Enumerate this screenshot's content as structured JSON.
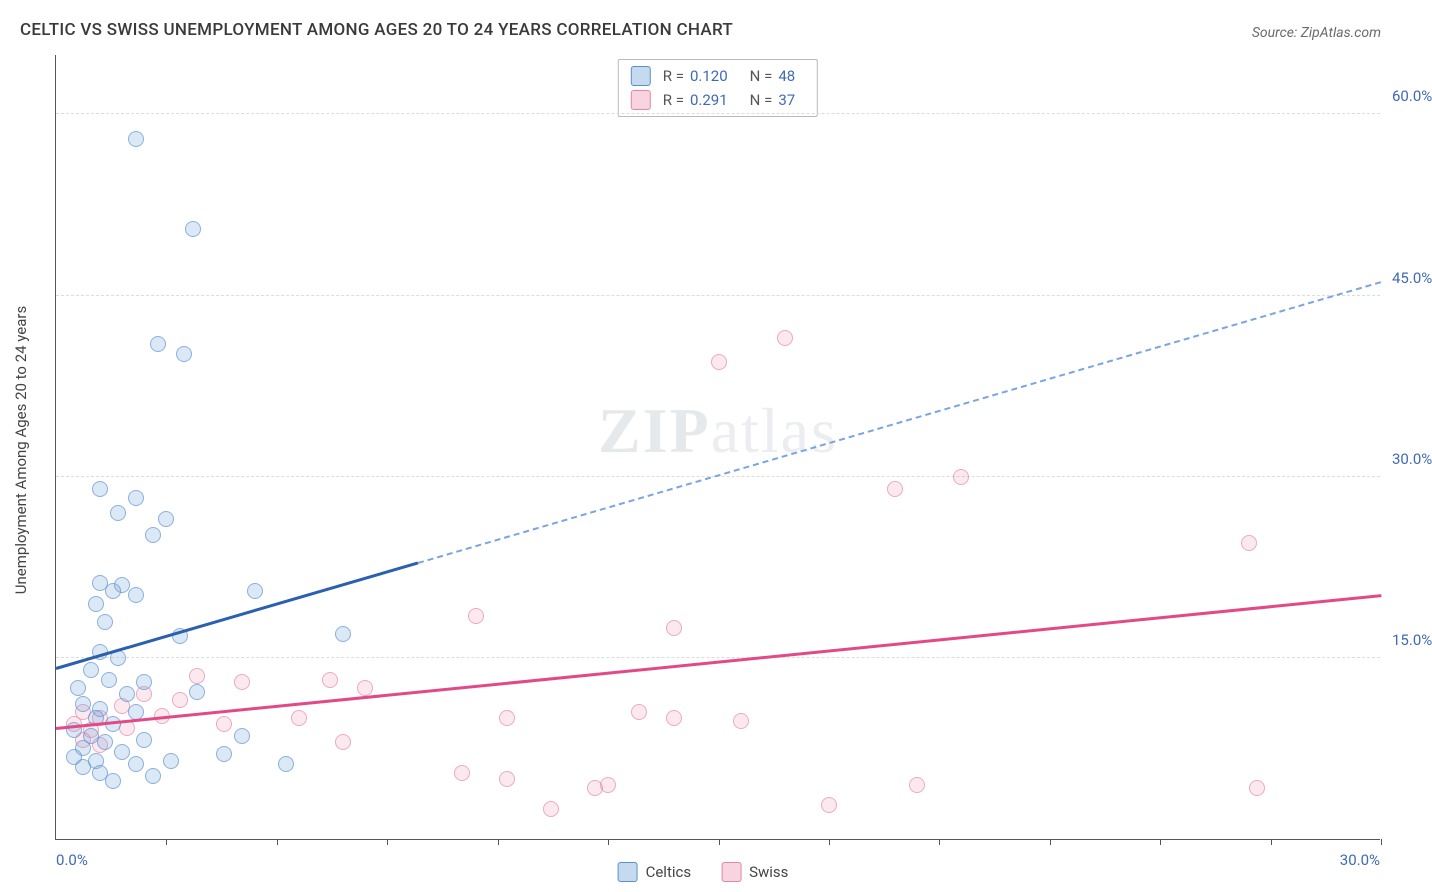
{
  "title": "CELTIC VS SWISS UNEMPLOYMENT AMONG AGES 20 TO 24 YEARS CORRELATION CHART",
  "source": "Source: ZipAtlas.com",
  "watermark_a": "ZIP",
  "watermark_b": "atlas",
  "ylabel": "Unemployment Among Ages 20 to 24 years",
  "chart": {
    "type": "scatter",
    "background_color": "#ffffff",
    "grid_color": "#dcdcdc",
    "axis_color": "#555555",
    "xlim": [
      0,
      30
    ],
    "ylim": [
      0,
      65
    ],
    "xtick_marks": [
      2.5,
      5,
      7.5,
      10,
      12.5,
      15,
      17.5,
      20,
      22.5,
      25,
      27.5,
      30
    ],
    "xlabels": {
      "min": "0.0%",
      "max": "30.0%"
    },
    "yticks": [
      {
        "v": 15,
        "label": "15.0%"
      },
      {
        "v": 30,
        "label": "30.0%"
      },
      {
        "v": 45,
        "label": "45.0%"
      },
      {
        "v": 60,
        "label": "60.0%"
      }
    ],
    "series": {
      "blue": {
        "name": "Celtics",
        "color_fill": "rgba(110,160,215,0.35)",
        "color_stroke": "#5b8fd0",
        "r": 0.12,
        "n": 48,
        "marker_size_px": 16,
        "trend": {
          "y_at_xmin": 14,
          "y_at_xmax": 46,
          "solid_until_x": 8.2,
          "color_solid": "#2b5fb0",
          "color_dash": "#7aa5de"
        },
        "points": [
          [
            1.8,
            58
          ],
          [
            3.1,
            50.5
          ],
          [
            2.3,
            41
          ],
          [
            2.9,
            40.2
          ],
          [
            1.0,
            29
          ],
          [
            1.8,
            28.2
          ],
          [
            1.4,
            27
          ],
          [
            2.5,
            26.5
          ],
          [
            2.2,
            25.2
          ],
          [
            1.0,
            21.2
          ],
          [
            1.5,
            21
          ],
          [
            4.5,
            20.5
          ],
          [
            1.8,
            20.2
          ],
          [
            1.3,
            20.5
          ],
          [
            0.9,
            19.5
          ],
          [
            1.1,
            18
          ],
          [
            6.5,
            17
          ],
          [
            2.8,
            16.8
          ],
          [
            1.0,
            15.5
          ],
          [
            1.4,
            15
          ],
          [
            0.8,
            14
          ],
          [
            1.2,
            13.2
          ],
          [
            2.0,
            13
          ],
          [
            0.5,
            12.5
          ],
          [
            1.6,
            12
          ],
          [
            3.2,
            12.2
          ],
          [
            0.6,
            11.2
          ],
          [
            1.0,
            10.8
          ],
          [
            1.8,
            10.5
          ],
          [
            0.9,
            10
          ],
          [
            1.3,
            9.5
          ],
          [
            0.4,
            9
          ],
          [
            0.8,
            8.5
          ],
          [
            2.0,
            8.2
          ],
          [
            1.1,
            8
          ],
          [
            4.2,
            8.5
          ],
          [
            0.6,
            7.5
          ],
          [
            1.5,
            7.2
          ],
          [
            0.4,
            6.8
          ],
          [
            0.9,
            6.5
          ],
          [
            1.8,
            6.2
          ],
          [
            2.6,
            6.5
          ],
          [
            0.6,
            6
          ],
          [
            3.8,
            7
          ],
          [
            5.2,
            6.2
          ],
          [
            1.0,
            5.5
          ],
          [
            2.2,
            5.2
          ],
          [
            1.3,
            4.8
          ]
        ]
      },
      "pink": {
        "name": "Swiss",
        "color_fill": "rgba(235,130,165,0.25)",
        "color_stroke": "#e585a8",
        "r": 0.291,
        "n": 37,
        "marker_size_px": 16,
        "trend": {
          "y_at_xmin": 9,
          "y_at_xmax": 20,
          "solid_until_x": 30,
          "color_solid": "#e14a86"
        },
        "points": [
          [
            16.5,
            41.5
          ],
          [
            15,
            39.5
          ],
          [
            20.5,
            30
          ],
          [
            19,
            29
          ],
          [
            27,
            24.5
          ],
          [
            9.5,
            18.5
          ],
          [
            14,
            17.5
          ],
          [
            3.2,
            13.5
          ],
          [
            4.2,
            13
          ],
          [
            6.2,
            13.2
          ],
          [
            7,
            12.5
          ],
          [
            2.0,
            12
          ],
          [
            2.8,
            11.5
          ],
          [
            1.5,
            11
          ],
          [
            0.6,
            10.5
          ],
          [
            1.0,
            10
          ],
          [
            2.4,
            10.2
          ],
          [
            0.4,
            9.5
          ],
          [
            0.8,
            9
          ],
          [
            1.6,
            9.2
          ],
          [
            3.8,
            9.5
          ],
          [
            5.5,
            10
          ],
          [
            10.2,
            10
          ],
          [
            13.2,
            10.5
          ],
          [
            14,
            10
          ],
          [
            15.5,
            9.8
          ],
          [
            0.6,
            8.2
          ],
          [
            1.0,
            7.8
          ],
          [
            6.5,
            8
          ],
          [
            9.2,
            5.5
          ],
          [
            10.2,
            5
          ],
          [
            12.2,
            4.2
          ],
          [
            12.5,
            4.5
          ],
          [
            11.2,
            2.5
          ],
          [
            17.5,
            2.8
          ],
          [
            19.5,
            4.5
          ],
          [
            27.2,
            4.2
          ]
        ]
      }
    }
  },
  "legend_top": {
    "rows": [
      {
        "swatch": "blue",
        "r_label": "R = ",
        "r_val": "0.120",
        "n_label": "N = ",
        "n_val": "48"
      },
      {
        "swatch": "pink",
        "r_label": "R = ",
        "r_val": "0.291",
        "n_label": "N = ",
        "n_val": "37"
      }
    ]
  },
  "legend_bottom": [
    {
      "swatch": "blue",
      "label": "Celtics"
    },
    {
      "swatch": "pink",
      "label": "Swiss"
    }
  ],
  "label_fontsize_pt": 15,
  "title_fontsize_pt": 17
}
